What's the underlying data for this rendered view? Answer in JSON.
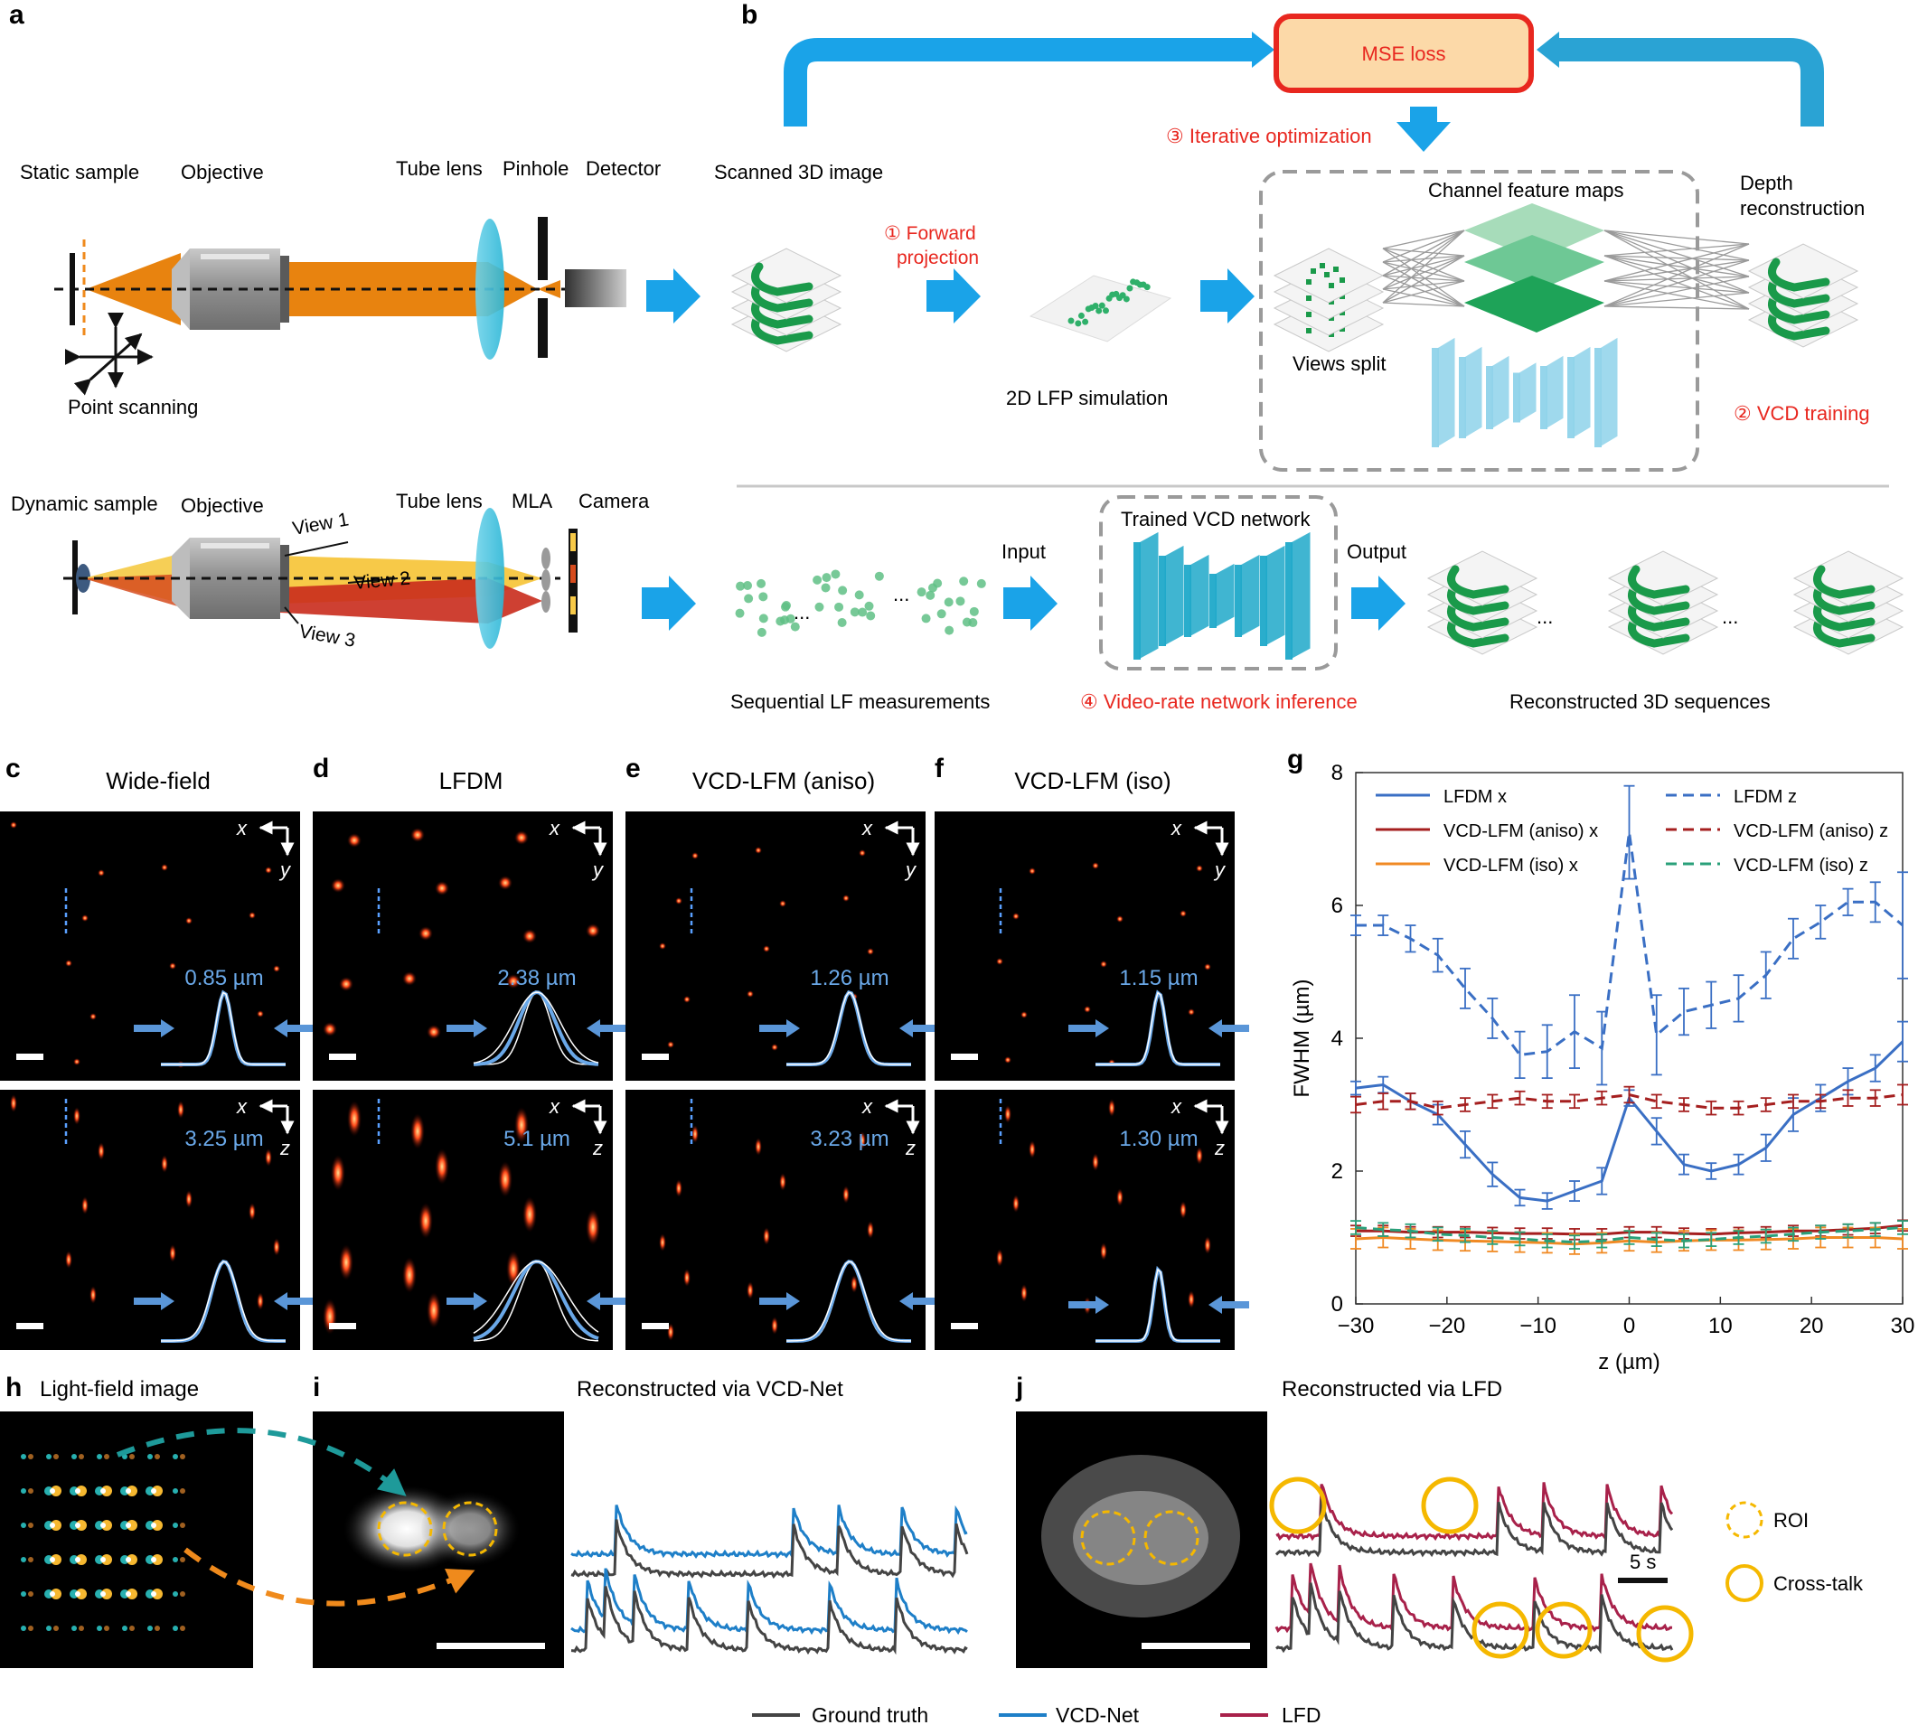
{
  "panels": {
    "a": "a",
    "b": "b",
    "c": "c",
    "d": "d",
    "e": "e",
    "f": "f",
    "g": "g",
    "h": "h",
    "i": "i",
    "j": "j"
  },
  "a": {
    "static_sample": "Static sample",
    "objective": "Objective",
    "tube_lens": "Tube lens",
    "pinhole": "Pinhole",
    "detector": "Detector",
    "point_scanning": "Point scanning",
    "dynamic_sample": "Dynamic sample",
    "objective2": "Objective",
    "tube_lens2": "Tube lens",
    "mla": "MLA",
    "camera": "Camera",
    "view1": "View 1",
    "view2": "View 2",
    "view3": "View 3"
  },
  "b": {
    "mse_loss": "MSE loss",
    "iterative": "③ Iterative optimization",
    "scanned": "Scanned 3D image",
    "forward1": "① Forward",
    "forward2": "projection",
    "lfp": "2D LFP simulation",
    "channel": "Channel feature maps",
    "views_split": "Views split",
    "depth1": "Depth",
    "depth2": "reconstruction",
    "vcd_training": "② VCD training",
    "trained": "Trained VCD network",
    "input": "Input",
    "output": "Output",
    "seq_lf": "Sequential LF measurements",
    "video_rate": "④ Video-rate network inference",
    "recon": "Reconstructed 3D sequences",
    "dots": "..."
  },
  "cf": [
    {
      "title": "Wide-field",
      "xy": "0.85 µm",
      "xz": "3.25 µm"
    },
    {
      "title": "LFDM",
      "xy": "2.38 µm",
      "xz": "5.1 µm"
    },
    {
      "title": "VCD-LFM (aniso)",
      "xy": "1.26 µm",
      "xz": "3.23 µm"
    },
    {
      "title": "VCD-LFM (iso)",
      "xy": "1.15 µm",
      "xz": "1.30 µm"
    }
  ],
  "axes_labels": {
    "x": "x",
    "y": "y",
    "z": "z"
  },
  "colors": {
    "blue_arrow": "#1aa3e8",
    "red": "#e8271f",
    "orange": "#e87a0e",
    "green": "#1a9a4a",
    "lfdm": "#3a6fc4",
    "aniso": "#a51f1f",
    "iso": "#f08a24",
    "iso_z": "#2aa07a",
    "gt": "#444444",
    "vcd": "#1e7fc8",
    "lfd": "#a8214a",
    "roi": "#f5b800"
  },
  "chart_data": {
    "type": "line",
    "xlabel": "z (µm)",
    "ylabel": "FWHM (µm)",
    "xlim": [
      -30,
      30
    ],
    "ylim": [
      0,
      8
    ],
    "xticks": [
      -30,
      -20,
      -10,
      0,
      10,
      20,
      30
    ],
    "xtick_labels": [
      "−30",
      "−20",
      "−10",
      "0",
      "10",
      "20",
      "30"
    ],
    "yticks": [
      0,
      2,
      4,
      6,
      8
    ],
    "legend_placement": "top",
    "x": [
      -30,
      -27,
      -24,
      -21,
      -18,
      -15,
      -12,
      -9,
      -6,
      -3,
      0,
      3,
      6,
      9,
      12,
      15,
      18,
      21,
      24,
      27,
      30
    ],
    "series": [
      {
        "name": "LFDM x",
        "style": "solid",
        "values": [
          3.25,
          3.3,
          3.05,
          2.85,
          2.4,
          1.95,
          1.6,
          1.55,
          1.7,
          1.85,
          3.1,
          2.6,
          2.1,
          2.0,
          2.1,
          2.35,
          2.85,
          3.1,
          3.35,
          3.55,
          3.95
        ],
        "err": [
          0.1,
          0.12,
          0.12,
          0.15,
          0.2,
          0.18,
          0.12,
          0.12,
          0.15,
          0.2,
          0.12,
          0.2,
          0.15,
          0.12,
          0.15,
          0.2,
          0.25,
          0.2,
          0.2,
          0.2,
          0.3
        ]
      },
      {
        "name": "VCD-LFM (aniso) x",
        "style": "solid",
        "values": [
          1.1,
          1.1,
          1.08,
          1.08,
          1.08,
          1.07,
          1.06,
          1.06,
          1.05,
          1.05,
          1.08,
          1.08,
          1.06,
          1.05,
          1.07,
          1.08,
          1.1,
          1.1,
          1.12,
          1.14,
          1.18
        ],
        "err": [
          0.08,
          0.08,
          0.08,
          0.08,
          0.08,
          0.08,
          0.08,
          0.08,
          0.08,
          0.08,
          0.08,
          0.08,
          0.08,
          0.08,
          0.08,
          0.08,
          0.08,
          0.08,
          0.08,
          0.08,
          0.08
        ]
      },
      {
        "name": "VCD-LFM (iso) x",
        "style": "solid",
        "values": [
          0.98,
          1.0,
          0.98,
          0.96,
          0.95,
          0.94,
          0.93,
          0.92,
          0.9,
          0.92,
          0.95,
          0.93,
          0.95,
          0.96,
          0.96,
          0.97,
          0.98,
          1.0,
          1.0,
          1.0,
          0.98
        ],
        "err": [
          0.15,
          0.15,
          0.15,
          0.15,
          0.15,
          0.15,
          0.15,
          0.15,
          0.15,
          0.15,
          0.15,
          0.15,
          0.15,
          0.15,
          0.15,
          0.15,
          0.15,
          0.15,
          0.15,
          0.15,
          0.15
        ]
      },
      {
        "name": "LFDM z",
        "style": "dashed",
        "values": [
          5.7,
          5.7,
          5.5,
          5.25,
          4.75,
          4.3,
          3.75,
          3.8,
          4.1,
          3.85,
          7.1,
          4.05,
          4.4,
          4.5,
          4.6,
          4.95,
          5.5,
          5.75,
          6.05,
          6.05,
          5.7
        ],
        "err": [
          0.15,
          0.15,
          0.2,
          0.25,
          0.3,
          0.3,
          0.35,
          0.4,
          0.55,
          0.55,
          0.7,
          0.6,
          0.35,
          0.35,
          0.35,
          0.35,
          0.3,
          0.25,
          0.2,
          0.3,
          0.8
        ]
      },
      {
        "name": "VCD-LFM (aniso) z",
        "style": "dashed",
        "values": [
          3.0,
          3.05,
          3.05,
          2.95,
          3.0,
          3.05,
          3.1,
          3.05,
          3.05,
          3.1,
          3.15,
          3.05,
          3.0,
          2.95,
          2.95,
          3.0,
          3.05,
          3.05,
          3.1,
          3.1,
          3.15
        ],
        "err": [
          0.12,
          0.12,
          0.12,
          0.1,
          0.1,
          0.1,
          0.1,
          0.1,
          0.1,
          0.1,
          0.12,
          0.1,
          0.1,
          0.1,
          0.1,
          0.1,
          0.1,
          0.1,
          0.12,
          0.12,
          0.15
        ]
      },
      {
        "name": "VCD-LFM (iso) z",
        "style": "dashed",
        "values": [
          1.15,
          1.12,
          1.1,
          1.05,
          1.03,
          1.0,
          0.98,
          0.95,
          0.93,
          0.95,
          1.0,
          0.97,
          0.95,
          0.97,
          1.0,
          1.02,
          1.05,
          1.08,
          1.1,
          1.12,
          1.15
        ],
        "err": [
          0.1,
          0.1,
          0.1,
          0.1,
          0.1,
          0.1,
          0.1,
          0.1,
          0.1,
          0.1,
          0.1,
          0.1,
          0.1,
          0.1,
          0.1,
          0.1,
          0.1,
          0.1,
          0.1,
          0.1,
          0.1
        ]
      }
    ]
  },
  "h": {
    "title": "Light-field image"
  },
  "i": {
    "title": "Reconstructed via VCD-Net"
  },
  "j": {
    "title": "Reconstructed via LFD",
    "roi": "ROI",
    "crosstalk": "Cross-talk",
    "scale": "5 s"
  },
  "legend_bottom": {
    "gt": "Ground truth",
    "vcd": "VCD-Net",
    "lfd": "LFD"
  }
}
